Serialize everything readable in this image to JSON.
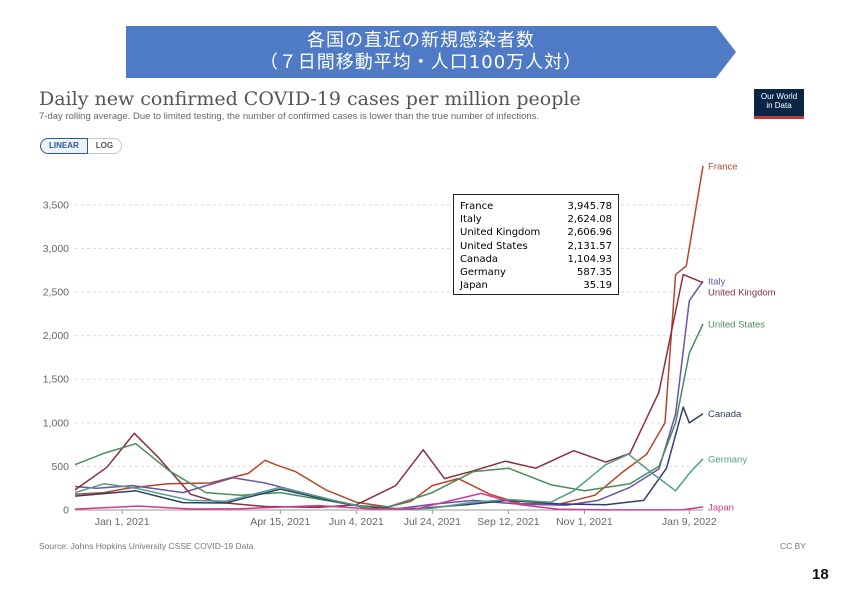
{
  "banner": {
    "line1": "各国の直近の新規感染者数",
    "line2": "（７日間移動平均・人口100万人対）",
    "color": "#4f7bc6"
  },
  "logo": {
    "line1": "Our World",
    "line2": "in Data"
  },
  "toggle": {
    "linear": "LINEAR",
    "log": "LOG"
  },
  "tooltip": [
    {
      "country": "France",
      "value": "3,945.78"
    },
    {
      "country": "Italy",
      "value": "2,624.08"
    },
    {
      "country": "United Kingdom",
      "value": "2,606.96"
    },
    {
      "country": "United States",
      "value": "2,131.57"
    },
    {
      "country": "Canada",
      "value": "1,104.93"
    },
    {
      "country": "Germany",
      "value": "587.35"
    },
    {
      "country": "Japan",
      "value": "35.19"
    }
  ],
  "footer": {
    "source": "Source: Johns Hopkins University CSSE COVID-19 Data",
    "license": "CC BY",
    "page_number": "18"
  },
  "chart_data": {
    "type": "line",
    "title": "Daily new confirmed COVID-19 cases per million people",
    "subtitle": "7-day rolling average. Due to limited testing, the number of confirmed cases is lower than the true number of infections.",
    "xlabel": "",
    "ylabel": "",
    "x_range": [
      "2020-12-01",
      "2022-01-18"
    ],
    "ylim": [
      0,
      3900
    ],
    "yticks": [
      0,
      500,
      1000,
      1500,
      2000,
      2500,
      3000,
      3500
    ],
    "ytick_labels": [
      "0",
      "500",
      "1,000",
      "1,500",
      "2,000",
      "2,500",
      "3,000",
      "3,500"
    ],
    "xticks": [
      "2021-01-01",
      "2021-04-15",
      "2021-06-04",
      "2021-07-24",
      "2021-09-12",
      "2021-11-01",
      "2022-01-09"
    ],
    "xtick_labels": [
      "Jan 1, 2021",
      "Apr 15, 2021",
      "Jun 4, 2021",
      "Jul 24, 2021",
      "Sep 12, 2021",
      "Nov 1, 2021",
      "Jan 9, 2022"
    ],
    "grid": "horizontal",
    "legend": "end-labels-right",
    "series": [
      {
        "name": "France",
        "color": "#b5462a",
        "points": [
          [
            "2020-12-01",
            180
          ],
          [
            "2020-12-20",
            200
          ],
          [
            "2021-01-05",
            250
          ],
          [
            "2021-01-31",
            300
          ],
          [
            "2021-02-28",
            310
          ],
          [
            "2021-03-25",
            420
          ],
          [
            "2021-04-05",
            570
          ],
          [
            "2021-04-12",
            520
          ],
          [
            "2021-04-25",
            440
          ],
          [
            "2021-05-15",
            230
          ],
          [
            "2021-06-04",
            90
          ],
          [
            "2021-06-25",
            35
          ],
          [
            "2021-07-10",
            100
          ],
          [
            "2021-07-24",
            280
          ],
          [
            "2021-08-10",
            360
          ],
          [
            "2021-08-31",
            180
          ],
          [
            "2021-09-20",
            75
          ],
          [
            "2021-10-15",
            65
          ],
          [
            "2021-11-08",
            170
          ],
          [
            "2021-11-25",
            420
          ],
          [
            "2021-12-12",
            640
          ],
          [
            "2021-12-24",
            1000
          ],
          [
            "2021-12-31",
            2700
          ],
          [
            "2022-01-07",
            2800
          ],
          [
            "2022-01-18",
            3946
          ]
        ]
      },
      {
        "name": "Italy",
        "color": "#6c53a7",
        "points": [
          [
            "2020-12-01",
            270
          ],
          [
            "2020-12-15",
            250
          ],
          [
            "2021-01-08",
            280
          ],
          [
            "2021-02-10",
            200
          ],
          [
            "2021-03-15",
            370
          ],
          [
            "2021-04-05",
            310
          ],
          [
            "2021-04-25",
            220
          ],
          [
            "2021-05-20",
            110
          ],
          [
            "2021-06-10",
            30
          ],
          [
            "2021-07-01",
            15
          ],
          [
            "2021-07-24",
            65
          ],
          [
            "2021-08-20",
            110
          ],
          [
            "2021-09-20",
            65
          ],
          [
            "2021-10-20",
            55
          ],
          [
            "2021-11-10",
            110
          ],
          [
            "2021-12-01",
            260
          ],
          [
            "2021-12-20",
            470
          ],
          [
            "2021-12-31",
            1100
          ],
          [
            "2022-01-09",
            2400
          ],
          [
            "2022-01-18",
            2624
          ]
        ]
      },
      {
        "name": "United Kingdom",
        "color": "#8a2f3f",
        "points": [
          [
            "2020-12-01",
            230
          ],
          [
            "2020-12-22",
            490
          ],
          [
            "2021-01-09",
            880
          ],
          [
            "2021-01-25",
            600
          ],
          [
            "2021-02-15",
            180
          ],
          [
            "2021-03-05",
            90
          ],
          [
            "2021-04-05",
            40
          ],
          [
            "2021-05-10",
            30
          ],
          [
            "2021-06-04",
            60
          ],
          [
            "2021-06-30",
            280
          ],
          [
            "2021-07-18",
            690
          ],
          [
            "2021-08-01",
            360
          ],
          [
            "2021-08-20",
            450
          ],
          [
            "2021-09-10",
            560
          ],
          [
            "2021-09-30",
            480
          ],
          [
            "2021-10-25",
            680
          ],
          [
            "2021-11-15",
            550
          ],
          [
            "2021-12-01",
            650
          ],
          [
            "2021-12-20",
            1350
          ],
          [
            "2022-01-05",
            2700
          ],
          [
            "2022-01-18",
            2607
          ]
        ]
      },
      {
        "name": "United States",
        "color": "#4a8c5c",
        "points": [
          [
            "2020-12-01",
            520
          ],
          [
            "2020-12-20",
            650
          ],
          [
            "2021-01-10",
            760
          ],
          [
            "2021-02-01",
            450
          ],
          [
            "2021-02-25",
            200
          ],
          [
            "2021-03-20",
            170
          ],
          [
            "2021-04-15",
            200
          ],
          [
            "2021-05-15",
            110
          ],
          [
            "2021-06-04",
            50
          ],
          [
            "2021-06-25",
            35
          ],
          [
            "2021-07-24",
            200
          ],
          [
            "2021-08-20",
            440
          ],
          [
            "2021-09-12",
            480
          ],
          [
            "2021-10-10",
            290
          ],
          [
            "2021-11-01",
            220
          ],
          [
            "2021-12-01",
            300
          ],
          [
            "2021-12-20",
            500
          ],
          [
            "2021-12-31",
            1000
          ],
          [
            "2022-01-09",
            1800
          ],
          [
            "2022-01-18",
            2132
          ]
        ]
      },
      {
        "name": "Canada",
        "color": "#2e3f68",
        "points": [
          [
            "2020-12-01",
            160
          ],
          [
            "2021-01-10",
            220
          ],
          [
            "2021-02-10",
            85
          ],
          [
            "2021-03-10",
            80
          ],
          [
            "2021-04-15",
            240
          ],
          [
            "2021-05-15",
            120
          ],
          [
            "2021-06-10",
            30
          ],
          [
            "2021-07-10",
            10
          ],
          [
            "2021-08-15",
            60
          ],
          [
            "2021-09-12",
            110
          ],
          [
            "2021-10-15",
            70
          ],
          [
            "2021-11-15",
            60
          ],
          [
            "2021-12-10",
            110
          ],
          [
            "2021-12-25",
            480
          ],
          [
            "2022-01-05",
            1180
          ],
          [
            "2022-01-09",
            1000
          ],
          [
            "2022-01-18",
            1105
          ]
        ]
      },
      {
        "name": "Germany",
        "color": "#4f9e8c",
        "points": [
          [
            "2020-12-01",
            200
          ],
          [
            "2020-12-20",
            300
          ],
          [
            "2021-01-10",
            250
          ],
          [
            "2021-02-15",
            110
          ],
          [
            "2021-03-10",
            100
          ],
          [
            "2021-04-15",
            260
          ],
          [
            "2021-05-20",
            110
          ],
          [
            "2021-06-15",
            15
          ],
          [
            "2021-07-05",
            8
          ],
          [
            "2021-07-24",
            20
          ],
          [
            "2021-08-20",
            90
          ],
          [
            "2021-09-12",
            120
          ],
          [
            "2021-10-10",
            90
          ],
          [
            "2021-10-25",
            220
          ],
          [
            "2021-11-15",
            520
          ],
          [
            "2021-11-30",
            640
          ],
          [
            "2021-12-15",
            430
          ],
          [
            "2021-12-31",
            220
          ],
          [
            "2022-01-09",
            420
          ],
          [
            "2022-01-18",
            587
          ]
        ]
      },
      {
        "name": "Japan",
        "color": "#d4378f",
        "points": [
          [
            "2020-12-01",
            10
          ],
          [
            "2021-01-12",
            45
          ],
          [
            "2021-02-15",
            12
          ],
          [
            "2021-03-20",
            15
          ],
          [
            "2021-05-10",
            50
          ],
          [
            "2021-06-15",
            12
          ],
          [
            "2021-07-15",
            20
          ],
          [
            "2021-08-25",
            190
          ],
          [
            "2021-09-20",
            60
          ],
          [
            "2021-10-15",
            8
          ],
          [
            "2021-11-15",
            1
          ],
          [
            "2021-12-20",
            1
          ],
          [
            "2022-01-05",
            4
          ],
          [
            "2022-01-18",
            35
          ]
        ]
      }
    ]
  }
}
